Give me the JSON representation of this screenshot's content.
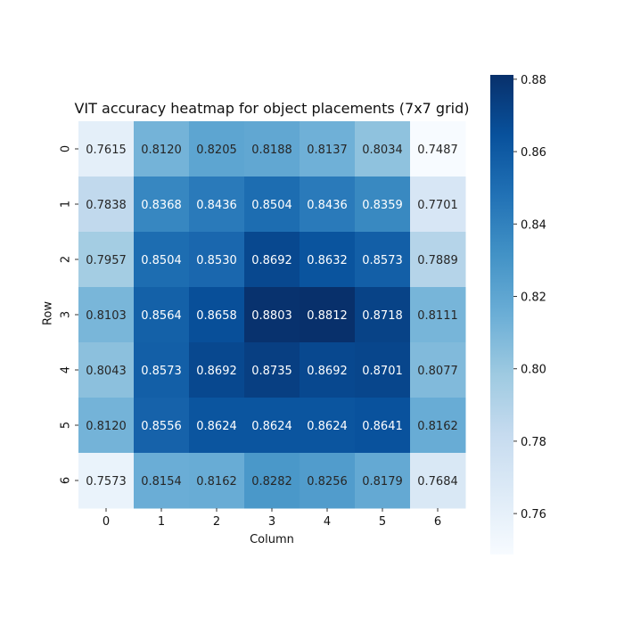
{
  "chart_data": {
    "type": "heatmap",
    "title": "VIT accuracy heatmap for object placements (7x7 grid)",
    "xlabel": "Column",
    "ylabel": "Row",
    "x_categories": [
      "0",
      "1",
      "2",
      "3",
      "4",
      "5",
      "6"
    ],
    "y_categories": [
      "0",
      "1",
      "2",
      "3",
      "4",
      "5",
      "6"
    ],
    "values": [
      [
        0.7615,
        0.812,
        0.8205,
        0.8188,
        0.8137,
        0.8034,
        0.7487
      ],
      [
        0.7838,
        0.8368,
        0.8436,
        0.8504,
        0.8436,
        0.8359,
        0.7701
      ],
      [
        0.7957,
        0.8504,
        0.853,
        0.8692,
        0.8632,
        0.8573,
        0.7889
      ],
      [
        0.8103,
        0.8564,
        0.8658,
        0.8803,
        0.8812,
        0.8718,
        0.8111
      ],
      [
        0.8043,
        0.8573,
        0.8692,
        0.8735,
        0.8692,
        0.8701,
        0.8077
      ],
      [
        0.812,
        0.8556,
        0.8624,
        0.8624,
        0.8624,
        0.8641,
        0.8162
      ],
      [
        0.7573,
        0.8154,
        0.8162,
        0.8282,
        0.8256,
        0.8179,
        0.7684
      ]
    ],
    "colormap": "Blues",
    "value_range": [
      0.7487,
      0.8812
    ],
    "colorbar_ticks": [
      "0.76",
      "0.78",
      "0.80",
      "0.82",
      "0.84",
      "0.86",
      "0.88"
    ],
    "annotations": true,
    "grid": false,
    "colorbar_position": "right"
  }
}
